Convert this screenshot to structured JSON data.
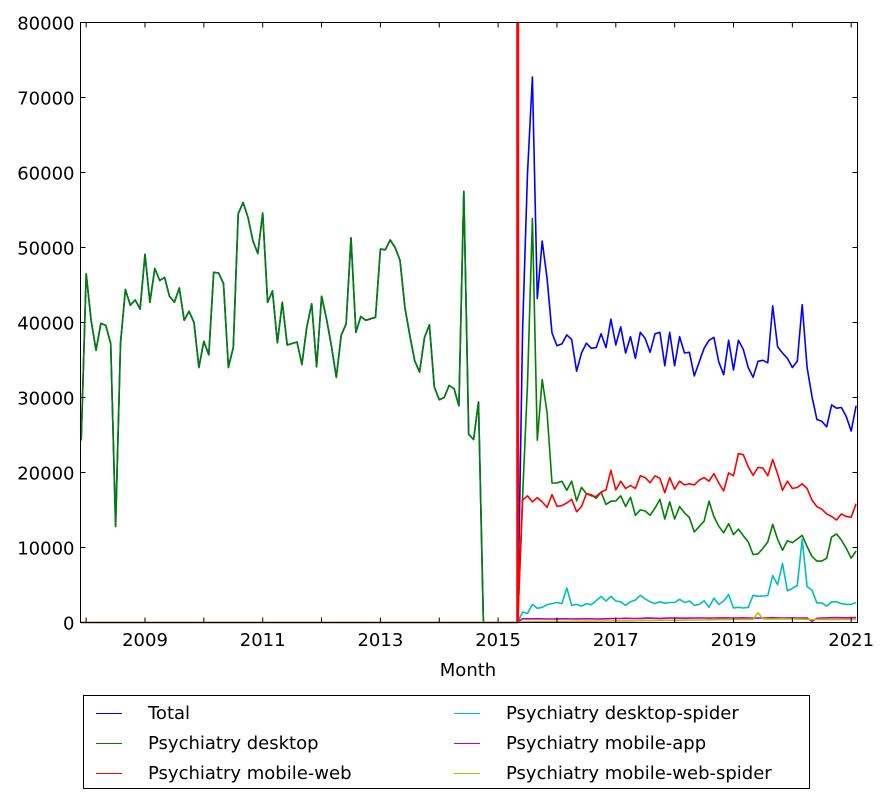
{
  "chart_data": {
    "type": "line",
    "title": "",
    "xlabel": "Month",
    "ylabel": "",
    "ylim": [
      0,
      80000
    ],
    "xlim": [
      "2007-12",
      "2021-02"
    ],
    "grid": false,
    "legend_placement": "bottom, below axes",
    "y_ticks": [
      "0",
      "10000",
      "20000",
      "30000",
      "40000",
      "50000",
      "60000",
      "70000",
      "80000"
    ],
    "x_ticks": [
      "2009",
      "2011",
      "2013",
      "2015",
      "2017",
      "2019",
      "2021"
    ],
    "vertical_marker": {
      "x": "2015-05",
      "color": "#ff0000"
    },
    "x": [
      "2007-12",
      "2008-01",
      "2008-02",
      "2008-03",
      "2008-04",
      "2008-05",
      "2008-06",
      "2008-07",
      "2008-08",
      "2008-09",
      "2008-10",
      "2008-11",
      "2008-12",
      "2009-01",
      "2009-02",
      "2009-03",
      "2009-04",
      "2009-05",
      "2009-06",
      "2009-07",
      "2009-08",
      "2009-09",
      "2009-10",
      "2009-11",
      "2009-12",
      "2010-01",
      "2010-02",
      "2010-03",
      "2010-04",
      "2010-05",
      "2010-06",
      "2010-07",
      "2010-08",
      "2010-09",
      "2010-10",
      "2010-11",
      "2010-12",
      "2011-01",
      "2011-02",
      "2011-03",
      "2011-04",
      "2011-05",
      "2011-06",
      "2011-07",
      "2011-08",
      "2011-09",
      "2011-10",
      "2011-11",
      "2011-12",
      "2012-01",
      "2012-02",
      "2012-03",
      "2012-04",
      "2012-05",
      "2012-06",
      "2012-07",
      "2012-08",
      "2012-09",
      "2012-10",
      "2012-11",
      "2012-12",
      "2013-01",
      "2013-02",
      "2013-03",
      "2013-04",
      "2013-05",
      "2013-06",
      "2013-07",
      "2013-08",
      "2013-09",
      "2013-10",
      "2013-11",
      "2013-12",
      "2014-01",
      "2014-02",
      "2014-03",
      "2014-04",
      "2014-05",
      "2014-06",
      "2014-07",
      "2014-08",
      "2014-09",
      "2014-10",
      "2014-11",
      "2014-12",
      "2015-01",
      "2015-02",
      "2015-03",
      "2015-04",
      "2015-05",
      "2015-06",
      "2015-07",
      "2015-08",
      "2015-09",
      "2015-10",
      "2015-11",
      "2015-12",
      "2016-01",
      "2016-02",
      "2016-03",
      "2016-04",
      "2016-05",
      "2016-06",
      "2016-07",
      "2016-08",
      "2016-09",
      "2016-10",
      "2016-11",
      "2016-12",
      "2017-01",
      "2017-02",
      "2017-03",
      "2017-04",
      "2017-05",
      "2017-06",
      "2017-07",
      "2017-08",
      "2017-09",
      "2017-10",
      "2017-11",
      "2017-12",
      "2018-01",
      "2018-02",
      "2018-03",
      "2018-04",
      "2018-05",
      "2018-06",
      "2018-07",
      "2018-08",
      "2018-09",
      "2018-10",
      "2018-11",
      "2018-12",
      "2019-01",
      "2019-02",
      "2019-03",
      "2019-04",
      "2019-05",
      "2019-06",
      "2019-07",
      "2019-08",
      "2019-09",
      "2019-10",
      "2019-11",
      "2019-12",
      "2020-01",
      "2020-02",
      "2020-03",
      "2020-04",
      "2020-05",
      "2020-06",
      "2020-07",
      "2020-08",
      "2020-09",
      "2020-10",
      "2020-11",
      "2020-12",
      "2021-01",
      "2021-02"
    ],
    "series": [
      {
        "name": "Total",
        "color": "#0000ff",
        "values": [
          24300,
          46500,
          40300,
          36300,
          39900,
          39600,
          37200,
          12800,
          37200,
          44400,
          42300,
          43000,
          41800,
          49100,
          42700,
          47200,
          45600,
          46000,
          43500,
          42700,
          44600,
          40300,
          41500,
          40000,
          34000,
          37500,
          35700,
          46700,
          46600,
          45200,
          34000,
          36700,
          54500,
          56000,
          54000,
          50900,
          49200,
          54600,
          42700,
          44200,
          37300,
          42700,
          37000,
          37200,
          37400,
          34400,
          39400,
          42500,
          34100,
          43500,
          40500,
          36900,
          32700,
          38300,
          39800,
          51300,
          38700,
          40800,
          40300,
          40500,
          40700,
          49800,
          49700,
          51000,
          50000,
          48300,
          42000,
          38300,
          34900,
          33400,
          38000,
          39700,
          31400,
          29700,
          30000,
          31600,
          31200,
          28900,
          57500,
          25100,
          24400,
          29400,
          0,
          0,
          0,
          0,
          0,
          0,
          0,
          0,
          39080,
          59900,
          72740,
          43200,
          50850,
          45860,
          38600,
          36900,
          37140,
          38350,
          37720,
          33510,
          35930,
          37240,
          36560,
          36660,
          38500,
          36660,
          40440,
          37000,
          39420,
          35930,
          38110,
          35210,
          38690,
          37870,
          36030,
          38500,
          38690,
          34240,
          38690,
          34240,
          38110,
          35930,
          36030,
          32880,
          34720,
          36560,
          37630,
          38010,
          34720,
          33030,
          37630,
          33660,
          37630,
          36420,
          34000,
          32690,
          34820,
          34960,
          34620,
          42230,
          36760,
          35930,
          35210,
          34000,
          34820,
          42370,
          34000,
          30120,
          27070,
          26830,
          26100,
          29010,
          28570,
          28670,
          27460,
          25520,
          28910
        ]
      },
      {
        "name": "Psychiatry desktop",
        "color": "#008000",
        "values": [
          24300,
          46500,
          40300,
          36300,
          39900,
          39600,
          37200,
          12800,
          37200,
          44400,
          42300,
          43000,
          41800,
          49100,
          42700,
          47200,
          45600,
          46000,
          43500,
          42700,
          44600,
          40300,
          41500,
          40000,
          34000,
          37500,
          35700,
          46700,
          46600,
          45200,
          34000,
          36700,
          54500,
          56000,
          54000,
          50900,
          49200,
          54600,
          42700,
          44200,
          37300,
          42700,
          37000,
          37200,
          37400,
          34400,
          39400,
          42500,
          34100,
          43500,
          40500,
          36900,
          32700,
          38300,
          39800,
          51300,
          38700,
          40800,
          40300,
          40500,
          40700,
          49800,
          49700,
          51000,
          50000,
          48300,
          42000,
          38300,
          34900,
          33400,
          38000,
          39700,
          31400,
          29700,
          30000,
          31600,
          31200,
          28900,
          57500,
          25100,
          24400,
          29400,
          0,
          0,
          0,
          0,
          0,
          0,
          0,
          0,
          16800,
          31800,
          53850,
          24310,
          32400,
          27940,
          18600,
          18600,
          18840,
          17630,
          18840,
          16220,
          18010,
          17190,
          17050,
          16560,
          17380,
          15740,
          16170,
          16220,
          16900,
          15450,
          16710,
          14290,
          15010,
          14870,
          14290,
          15250,
          16420,
          13800,
          16080,
          13800,
          15450,
          14620,
          14000,
          12060,
          12780,
          13510,
          16170,
          14140,
          12830,
          11960,
          13170,
          11720,
          12450,
          11570,
          10750,
          9060,
          9150,
          9880,
          10750,
          13080,
          11090,
          9640,
          10900,
          10650,
          11140,
          11620,
          10120,
          8810,
          8180,
          8180,
          8570,
          11380,
          11820,
          10990,
          9880,
          8570,
          9540
        ]
      },
      {
        "name": "Psychiatry mobile-web",
        "color": "#ff0000",
        "values": [
          0,
          0,
          0,
          0,
          0,
          0,
          0,
          0,
          0,
          0,
          0,
          0,
          0,
          0,
          0,
          0,
          0,
          0,
          0,
          0,
          0,
          0,
          0,
          0,
          0,
          0,
          0,
          0,
          0,
          0,
          0,
          0,
          0,
          0,
          0,
          0,
          0,
          0,
          0,
          0,
          0,
          0,
          0,
          0,
          0,
          0,
          0,
          0,
          0,
          0,
          0,
          0,
          0,
          0,
          0,
          0,
          0,
          0,
          0,
          0,
          0,
          0,
          0,
          0,
          0,
          0,
          0,
          0,
          0,
          0,
          0,
          0,
          0,
          0,
          0,
          0,
          0,
          0,
          0,
          0,
          0,
          0,
          0,
          0,
          0,
          0,
          0,
          0,
          0,
          0,
          16320,
          16900,
          16080,
          16660,
          16080,
          15350,
          17050,
          15500,
          15590,
          15930,
          16420,
          14770,
          15450,
          17190,
          16900,
          16800,
          17380,
          17680,
          20290,
          17680,
          18840,
          17870,
          18260,
          17870,
          19560,
          19320,
          18640,
          19560,
          19230,
          17290,
          19320,
          17770,
          18840,
          18350,
          18500,
          18350,
          18980,
          19320,
          18840,
          19850,
          18600,
          17530,
          19950,
          19560,
          22520,
          22370,
          20770,
          19610,
          20680,
          20580,
          19560,
          21740,
          19810,
          17630,
          18840,
          17870,
          18010,
          18500,
          17870,
          16320,
          15450,
          15110,
          14480,
          14140,
          13660,
          14480,
          14140,
          14040,
          15840
        ]
      },
      {
        "name": "Psychiatry desktop-spider",
        "color": "#00bfbf",
        "values": [
          0,
          0,
          0,
          0,
          0,
          0,
          0,
          0,
          0,
          0,
          0,
          0,
          0,
          0,
          0,
          0,
          0,
          0,
          0,
          0,
          0,
          0,
          0,
          0,
          0,
          0,
          0,
          0,
          0,
          0,
          0,
          0,
          0,
          0,
          0,
          0,
          0,
          0,
          0,
          0,
          0,
          0,
          0,
          0,
          0,
          0,
          0,
          0,
          0,
          0,
          0,
          0,
          0,
          0,
          0,
          0,
          0,
          0,
          0,
          0,
          0,
          0,
          0,
          0,
          0,
          0,
          0,
          0,
          0,
          0,
          0,
          0,
          0,
          0,
          0,
          0,
          0,
          0,
          0,
          0,
          0,
          0,
          0,
          0,
          0,
          0,
          0,
          0,
          0,
          0,
          1400,
          1200,
          2420,
          1890,
          2030,
          2370,
          2520,
          2660,
          2520,
          4600,
          2280,
          2420,
          2180,
          2520,
          2370,
          2900,
          3490,
          2860,
          3490,
          2860,
          2760,
          2280,
          2760,
          3000,
          3630,
          3150,
          2760,
          2520,
          2760,
          2570,
          2660,
          2660,
          3100,
          2660,
          2860,
          2280,
          2420,
          2900,
          2030,
          3240,
          2420,
          2860,
          3730,
          1940,
          2030,
          1940,
          2030,
          3630,
          3490,
          3540,
          3580,
          6250,
          5040,
          7850,
          4210,
          4550,
          4940,
          11090,
          4790,
          4310,
          2610,
          2610,
          2180,
          2760,
          2760,
          2520,
          2420,
          2420,
          2660
        ]
      },
      {
        "name": "Psychiatry mobile-app",
        "color": "#bf00bf",
        "values": [
          0,
          0,
          0,
          0,
          0,
          0,
          0,
          0,
          0,
          0,
          0,
          0,
          0,
          0,
          0,
          0,
          0,
          0,
          0,
          0,
          0,
          0,
          0,
          0,
          0,
          0,
          0,
          0,
          0,
          0,
          0,
          0,
          0,
          0,
          0,
          0,
          0,
          0,
          0,
          0,
          0,
          0,
          0,
          0,
          0,
          0,
          0,
          0,
          0,
          0,
          0,
          0,
          0,
          0,
          0,
          0,
          0,
          0,
          0,
          0,
          0,
          0,
          0,
          0,
          0,
          0,
          0,
          0,
          0,
          0,
          0,
          0,
          0,
          0,
          0,
          0,
          0,
          0,
          0,
          0,
          0,
          0,
          0,
          0,
          0,
          0,
          0,
          0,
          0,
          0,
          520,
          480,
          500,
          510,
          490,
          470,
          460,
          480,
          500,
          490,
          470,
          480,
          500,
          510,
          490,
          470,
          480,
          500,
          520,
          530,
          540,
          560,
          550,
          530,
          550,
          570,
          580,
          560,
          550,
          570,
          590,
          600,
          580,
          570,
          590,
          600,
          620,
          600,
          590,
          600,
          620,
          630,
          610,
          600,
          620,
          630,
          600,
          590,
          580,
          600,
          620,
          640,
          620,
          600,
          620,
          610,
          590,
          600,
          620,
          150,
          560,
          600,
          620,
          640,
          650,
          640,
          630,
          650,
          670
        ]
      },
      {
        "name": "Psychiatry mobile-web-spider",
        "color": "#bfbf00",
        "values": [
          0,
          0,
          0,
          0,
          0,
          0,
          0,
          0,
          0,
          0,
          0,
          0,
          0,
          0,
          0,
          0,
          0,
          0,
          0,
          0,
          0,
          0,
          0,
          0,
          0,
          0,
          0,
          0,
          0,
          0,
          0,
          0,
          0,
          0,
          0,
          0,
          0,
          0,
          0,
          0,
          0,
          0,
          0,
          0,
          0,
          0,
          0,
          0,
          0,
          0,
          0,
          0,
          0,
          0,
          0,
          0,
          0,
          0,
          0,
          0,
          0,
          0,
          0,
          0,
          0,
          0,
          0,
          0,
          0,
          0,
          0,
          0,
          0,
          0,
          0,
          0,
          0,
          0,
          0,
          0,
          0,
          0,
          0,
          0,
          0,
          0,
          0,
          0,
          0,
          0,
          100,
          120,
          110,
          130,
          120,
          140,
          150,
          130,
          140,
          150,
          160,
          170,
          160,
          180,
          170,
          190,
          200,
          190,
          200,
          210,
          220,
          230,
          220,
          240,
          250,
          260,
          250,
          270,
          280,
          290,
          300,
          310,
          300,
          320,
          330,
          340,
          350,
          340,
          360,
          370,
          380,
          390,
          380,
          400,
          410,
          420,
          410,
          430,
          1300,
          500,
          450,
          460,
          470,
          480,
          470,
          460,
          450,
          440,
          430,
          420,
          410,
          400,
          390,
          380,
          390,
          400,
          410,
          420,
          430
        ]
      }
    ]
  }
}
